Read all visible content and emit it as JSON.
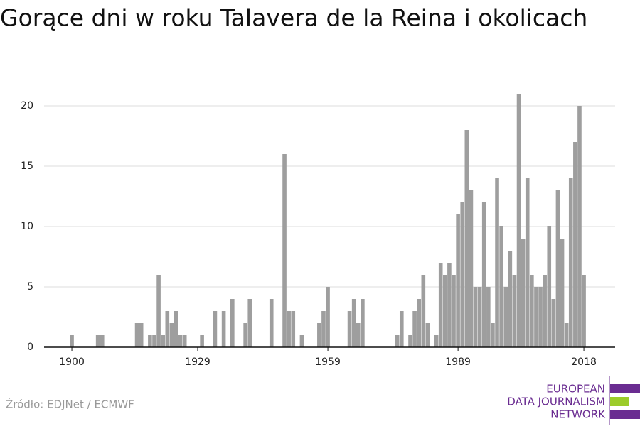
{
  "chart_data": {
    "type": "bar",
    "title": "Gorące dni w roku Talavera de la Reina i okolicach",
    "source": "Źródło: EDJNet / ECMWF",
    "logo": [
      "EUROPEAN",
      "DATA JOURNALISM",
      "NETWORK"
    ],
    "x": [
      1900,
      1906,
      1907,
      1915,
      1916,
      1918,
      1919,
      1920,
      1921,
      1922,
      1923,
      1924,
      1925,
      1926,
      1930,
      1933,
      1935,
      1937,
      1940,
      1941,
      1946,
      1949,
      1950,
      1951,
      1953,
      1957,
      1958,
      1959,
      1964,
      1965,
      1966,
      1967,
      1975,
      1976,
      1978,
      1979,
      1980,
      1981,
      1982,
      1984,
      1985,
      1986,
      1987,
      1988,
      1989,
      1990,
      1991,
      1992,
      1993,
      1994,
      1995,
      1996,
      1997,
      1998,
      1999,
      2000,
      2001,
      2002,
      2003,
      2004,
      2005,
      2006,
      2007,
      2008,
      2009,
      2010,
      2011,
      2012,
      2013,
      2014,
      2015,
      2016,
      2017,
      2018
    ],
    "values": [
      1,
      1,
      1,
      2,
      2,
      1,
      1,
      6,
      1,
      3,
      2,
      3,
      1,
      1,
      1,
      3,
      3,
      4,
      2,
      4,
      4,
      16,
      3,
      3,
      1,
      2,
      3,
      5,
      3,
      4,
      2,
      4,
      1,
      3,
      1,
      3,
      4,
      6,
      2,
      1,
      7,
      6,
      7,
      6,
      11,
      12,
      18,
      13,
      5,
      5,
      12,
      5,
      2,
      14,
      10,
      5,
      8,
      6,
      21,
      9,
      14,
      6,
      5,
      5,
      6,
      10,
      4,
      13,
      9,
      2,
      14,
      17,
      20,
      6
    ],
    "color": "#9e9e9e",
    "xlim": [
      1893.6,
      2025.2
    ],
    "xticks": [
      1900,
      1929,
      1959,
      1989,
      2018
    ],
    "ylim": [
      0,
      22
    ],
    "yticks": [
      0,
      5,
      10,
      15,
      20
    ],
    "grid": true
  }
}
